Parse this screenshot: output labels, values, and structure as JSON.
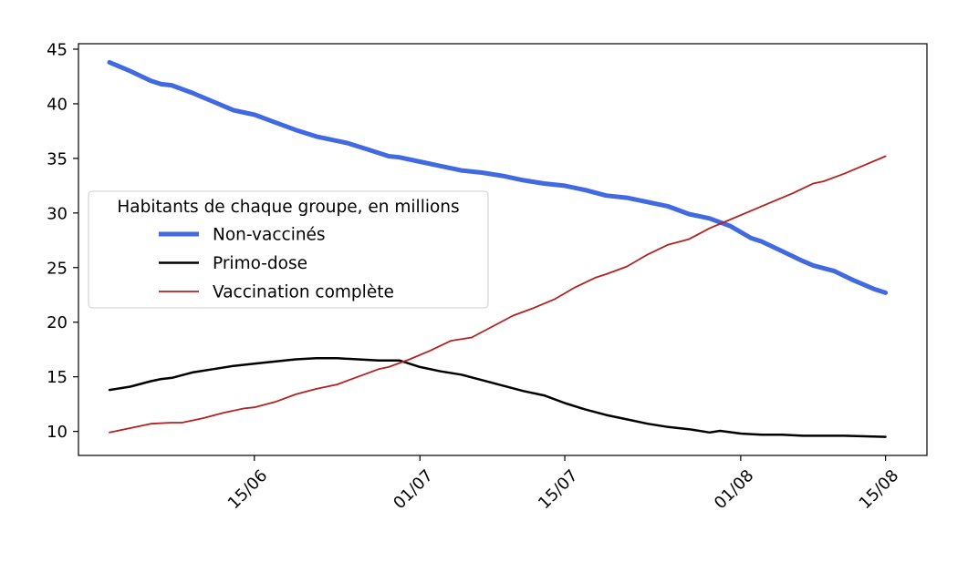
{
  "chart_data": {
    "type": "line",
    "title": "",
    "xlabel": "",
    "ylabel": "",
    "x_start": "2021-06-01",
    "x_end": "2021-08-15",
    "xlim": [
      "2021-05-29",
      "2021-08-19"
    ],
    "ylim": [
      7.8,
      45.5
    ],
    "y_ticks": [
      10,
      15,
      20,
      25,
      30,
      35,
      40,
      45
    ],
    "x_ticks": [
      {
        "date": "2021-06-15",
        "label": "15/06"
      },
      {
        "date": "2021-07-01",
        "label": "01/07"
      },
      {
        "date": "2021-07-15",
        "label": "15/07"
      },
      {
        "date": "2021-08-01",
        "label": "01/08"
      },
      {
        "date": "2021-08-15",
        "label": "15/08"
      }
    ],
    "legend": {
      "title": "Habitants de chaque groupe, en millions",
      "placement": "center-left"
    },
    "grid": false,
    "series": [
      {
        "name": "Non-vaccinés",
        "color": "#4169e1",
        "line_width": 5,
        "points": [
          [
            "2021-06-01",
            43.8
          ],
          [
            "2021-06-03",
            43.0
          ],
          [
            "2021-06-05",
            42.1
          ],
          [
            "2021-06-06",
            41.8
          ],
          [
            "2021-06-07",
            41.7
          ],
          [
            "2021-06-09",
            41.0
          ],
          [
            "2021-06-11",
            40.2
          ],
          [
            "2021-06-13",
            39.4
          ],
          [
            "2021-06-14",
            39.2
          ],
          [
            "2021-06-15",
            39.0
          ],
          [
            "2021-06-17",
            38.3
          ],
          [
            "2021-06-19",
            37.6
          ],
          [
            "2021-06-21",
            37.0
          ],
          [
            "2021-06-22",
            36.8
          ],
          [
            "2021-06-24",
            36.4
          ],
          [
            "2021-06-26",
            35.8
          ],
          [
            "2021-06-28",
            35.2
          ],
          [
            "2021-06-29",
            35.1
          ],
          [
            "2021-07-01",
            34.7
          ],
          [
            "2021-07-03",
            34.3
          ],
          [
            "2021-07-05",
            33.9
          ],
          [
            "2021-07-07",
            33.7
          ],
          [
            "2021-07-09",
            33.4
          ],
          [
            "2021-07-11",
            33.0
          ],
          [
            "2021-07-13",
            32.7
          ],
          [
            "2021-07-15",
            32.5
          ],
          [
            "2021-07-17",
            32.1
          ],
          [
            "2021-07-19",
            31.6
          ],
          [
            "2021-07-21",
            31.4
          ],
          [
            "2021-07-23",
            31.0
          ],
          [
            "2021-07-25",
            30.6
          ],
          [
            "2021-07-27",
            29.9
          ],
          [
            "2021-07-29",
            29.5
          ],
          [
            "2021-07-31",
            28.8
          ],
          [
            "2021-08-02",
            27.7
          ],
          [
            "2021-08-03",
            27.4
          ],
          [
            "2021-08-05",
            26.5
          ],
          [
            "2021-08-07",
            25.6
          ],
          [
            "2021-08-08",
            25.2
          ],
          [
            "2021-08-10",
            24.7
          ],
          [
            "2021-08-12",
            23.8
          ],
          [
            "2021-08-14",
            23.0
          ],
          [
            "2021-08-15",
            22.7
          ]
        ]
      },
      {
        "name": "Primo-dose",
        "color": "#000000",
        "line_width": 2.5,
        "points": [
          [
            "2021-06-01",
            13.8
          ],
          [
            "2021-06-03",
            14.1
          ],
          [
            "2021-06-05",
            14.6
          ],
          [
            "2021-06-06",
            14.8
          ],
          [
            "2021-06-07",
            14.9
          ],
          [
            "2021-06-09",
            15.4
          ],
          [
            "2021-06-11",
            15.7
          ],
          [
            "2021-06-13",
            16.0
          ],
          [
            "2021-06-15",
            16.2
          ],
          [
            "2021-06-17",
            16.4
          ],
          [
            "2021-06-19",
            16.6
          ],
          [
            "2021-06-21",
            16.7
          ],
          [
            "2021-06-23",
            16.7
          ],
          [
            "2021-06-25",
            16.6
          ],
          [
            "2021-06-27",
            16.5
          ],
          [
            "2021-06-29",
            16.5
          ],
          [
            "2021-07-01",
            15.9
          ],
          [
            "2021-07-03",
            15.5
          ],
          [
            "2021-07-05",
            15.2
          ],
          [
            "2021-07-07",
            14.7
          ],
          [
            "2021-07-09",
            14.2
          ],
          [
            "2021-07-11",
            13.7
          ],
          [
            "2021-07-13",
            13.3
          ],
          [
            "2021-07-15",
            12.6
          ],
          [
            "2021-07-17",
            12.0
          ],
          [
            "2021-07-19",
            11.5
          ],
          [
            "2021-07-21",
            11.1
          ],
          [
            "2021-07-23",
            10.7
          ],
          [
            "2021-07-25",
            10.4
          ],
          [
            "2021-07-27",
            10.2
          ],
          [
            "2021-07-29",
            9.9
          ],
          [
            "2021-07-30",
            10.05
          ],
          [
            "2021-08-01",
            9.8
          ],
          [
            "2021-08-03",
            9.7
          ],
          [
            "2021-08-05",
            9.7
          ],
          [
            "2021-08-07",
            9.6
          ],
          [
            "2021-08-09",
            9.6
          ],
          [
            "2021-08-11",
            9.6
          ],
          [
            "2021-08-13",
            9.55
          ],
          [
            "2021-08-15",
            9.5
          ]
        ]
      },
      {
        "name": "Vaccination complète",
        "color": "#b22222",
        "line_width": 1.8,
        "points": [
          [
            "2021-06-01",
            9.9
          ],
          [
            "2021-06-03",
            10.3
          ],
          [
            "2021-06-05",
            10.7
          ],
          [
            "2021-06-07",
            10.8
          ],
          [
            "2021-06-08",
            10.8
          ],
          [
            "2021-06-10",
            11.2
          ],
          [
            "2021-06-12",
            11.7
          ],
          [
            "2021-06-14",
            12.1
          ],
          [
            "2021-06-15",
            12.2
          ],
          [
            "2021-06-17",
            12.7
          ],
          [
            "2021-06-19",
            13.4
          ],
          [
            "2021-06-21",
            13.9
          ],
          [
            "2021-06-23",
            14.3
          ],
          [
            "2021-06-25",
            15.0
          ],
          [
            "2021-06-27",
            15.7
          ],
          [
            "2021-06-28",
            15.9
          ],
          [
            "2021-06-30",
            16.6
          ],
          [
            "2021-07-02",
            17.4
          ],
          [
            "2021-07-04",
            18.3
          ],
          [
            "2021-07-06",
            18.6
          ],
          [
            "2021-07-08",
            19.6
          ],
          [
            "2021-07-10",
            20.6
          ],
          [
            "2021-07-12",
            21.3
          ],
          [
            "2021-07-14",
            22.1
          ],
          [
            "2021-07-16",
            23.2
          ],
          [
            "2021-07-18",
            24.1
          ],
          [
            "2021-07-19",
            24.4
          ],
          [
            "2021-07-21",
            25.1
          ],
          [
            "2021-07-23",
            26.2
          ],
          [
            "2021-07-25",
            27.1
          ],
          [
            "2021-07-27",
            27.6
          ],
          [
            "2021-07-29",
            28.6
          ],
          [
            "2021-07-31",
            29.4
          ],
          [
            "2021-08-02",
            30.2
          ],
          [
            "2021-08-04",
            31.0
          ],
          [
            "2021-08-06",
            31.8
          ],
          [
            "2021-08-08",
            32.7
          ],
          [
            "2021-08-09",
            32.9
          ],
          [
            "2021-08-11",
            33.6
          ],
          [
            "2021-08-13",
            34.4
          ],
          [
            "2021-08-15",
            35.2
          ]
        ]
      }
    ]
  }
}
